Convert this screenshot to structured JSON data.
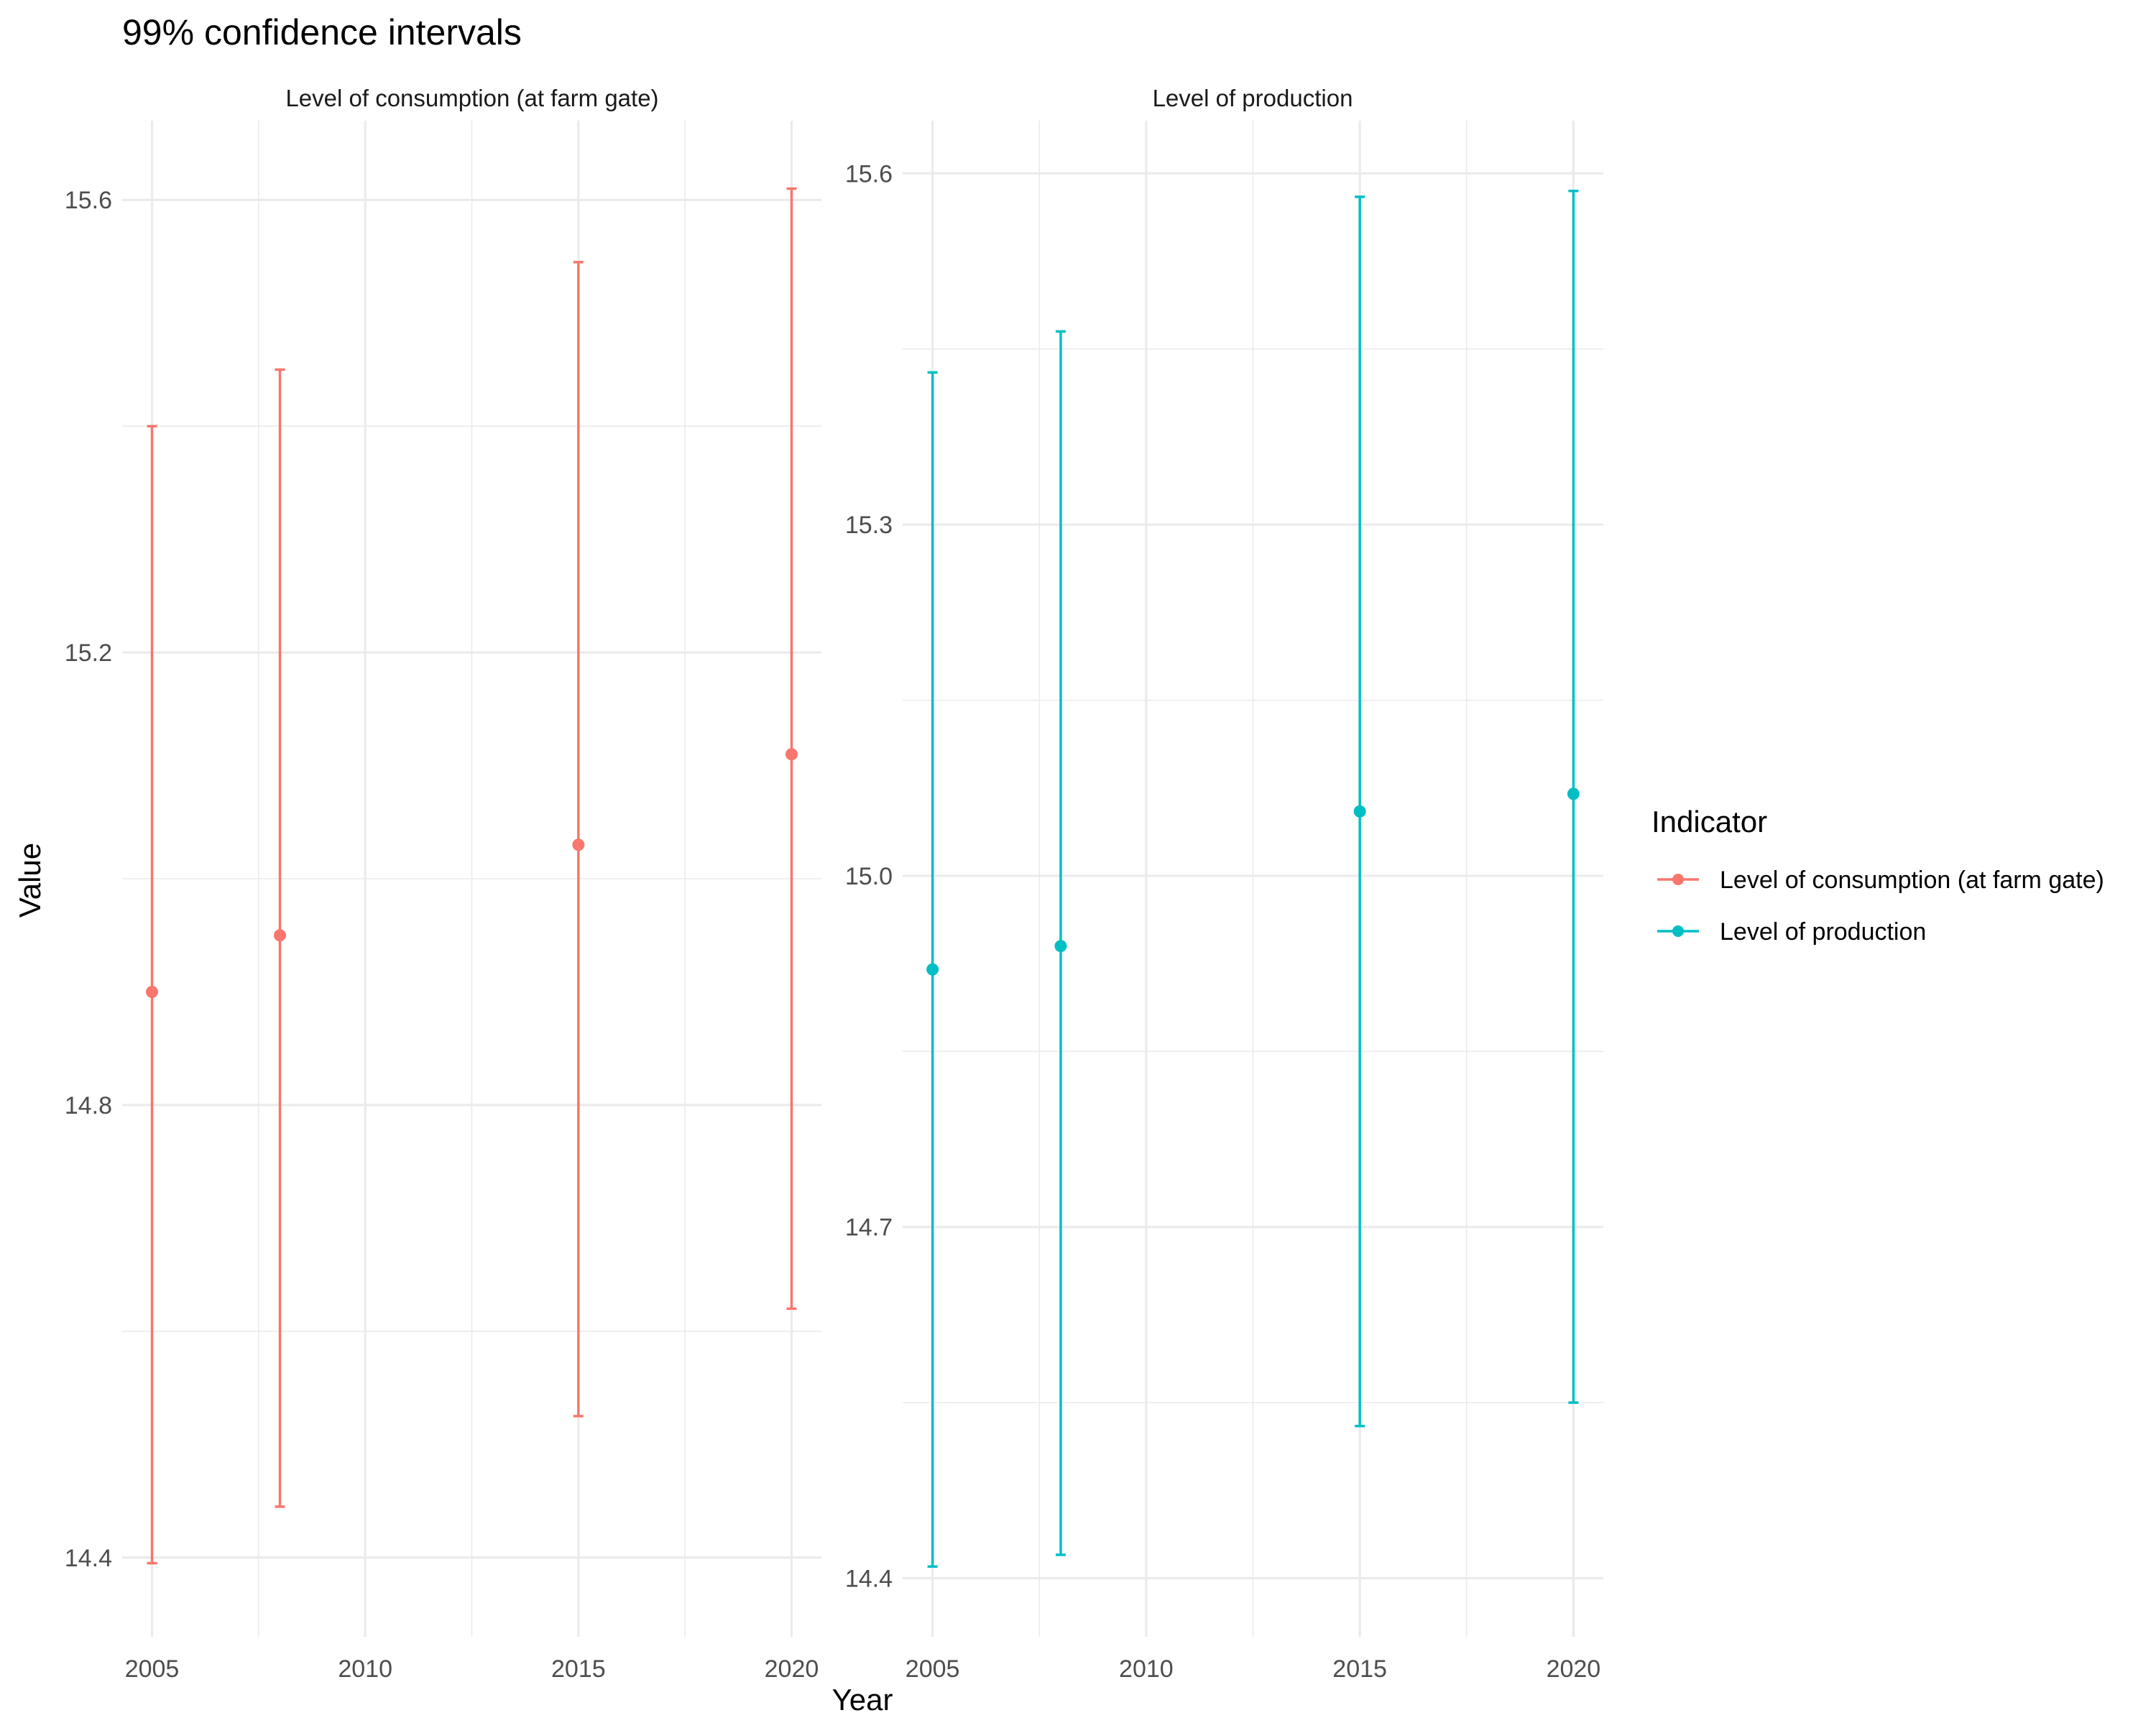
{
  "chart_data": {
    "type": "errorbar",
    "title": "99% confidence intervals",
    "xlabel": "Year",
    "ylabel": "Value",
    "grid": true,
    "legend": {
      "title": "Indicator",
      "position": "right",
      "entries": [
        {
          "label": "Level of consumption (at farm gate)",
          "color": "#F8766D"
        },
        {
          "label": "Level of production",
          "color": "#00BFC4"
        }
      ]
    },
    "panels": [
      {
        "strip": "Level of consumption (at farm gate)",
        "color": "#F8766D",
        "xlim": [
          2004.3,
          2020.7
        ],
        "x_ticks": [
          2005,
          2010,
          2015,
          2020
        ],
        "x_tick_labels": [
          "2005",
          "2010",
          "2015",
          "2020"
        ],
        "ylim": [
          14.33,
          15.67
        ],
        "y_ticks": [
          14.4,
          14.8,
          15.2,
          15.6
        ],
        "y_tick_labels": [
          "14.4",
          "14.8",
          "15.2",
          "15.6"
        ],
        "points": [
          {
            "x": 2005,
            "y": 14.9,
            "lower": 14.395,
            "upper": 15.4
          },
          {
            "x": 2008,
            "y": 14.95,
            "lower": 14.445,
            "upper": 15.45
          },
          {
            "x": 2015,
            "y": 15.03,
            "lower": 14.525,
            "upper": 15.545
          },
          {
            "x": 2020,
            "y": 15.11,
            "lower": 14.62,
            "upper": 15.61
          }
        ]
      },
      {
        "strip": "Level of production",
        "color": "#00BFC4",
        "xlim": [
          2004.3,
          2020.7
        ],
        "x_ticks": [
          2005,
          2010,
          2015,
          2020
        ],
        "x_tick_labels": [
          "2005",
          "2010",
          "2015",
          "2020"
        ],
        "ylim": [
          14.35,
          15.645
        ],
        "y_ticks": [
          14.4,
          14.7,
          15.0,
          15.3,
          15.6
        ],
        "y_tick_labels": [
          "14.4",
          "14.7",
          "15.0",
          "15.3",
          "15.6"
        ],
        "points": [
          {
            "x": 2005,
            "y": 14.92,
            "lower": 14.41,
            "upper": 15.43
          },
          {
            "x": 2008,
            "y": 14.94,
            "lower": 14.42,
            "upper": 15.465
          },
          {
            "x": 2015,
            "y": 15.055,
            "lower": 14.53,
            "upper": 15.58
          },
          {
            "x": 2020,
            "y": 15.07,
            "lower": 14.55,
            "upper": 15.585
          }
        ]
      }
    ]
  }
}
